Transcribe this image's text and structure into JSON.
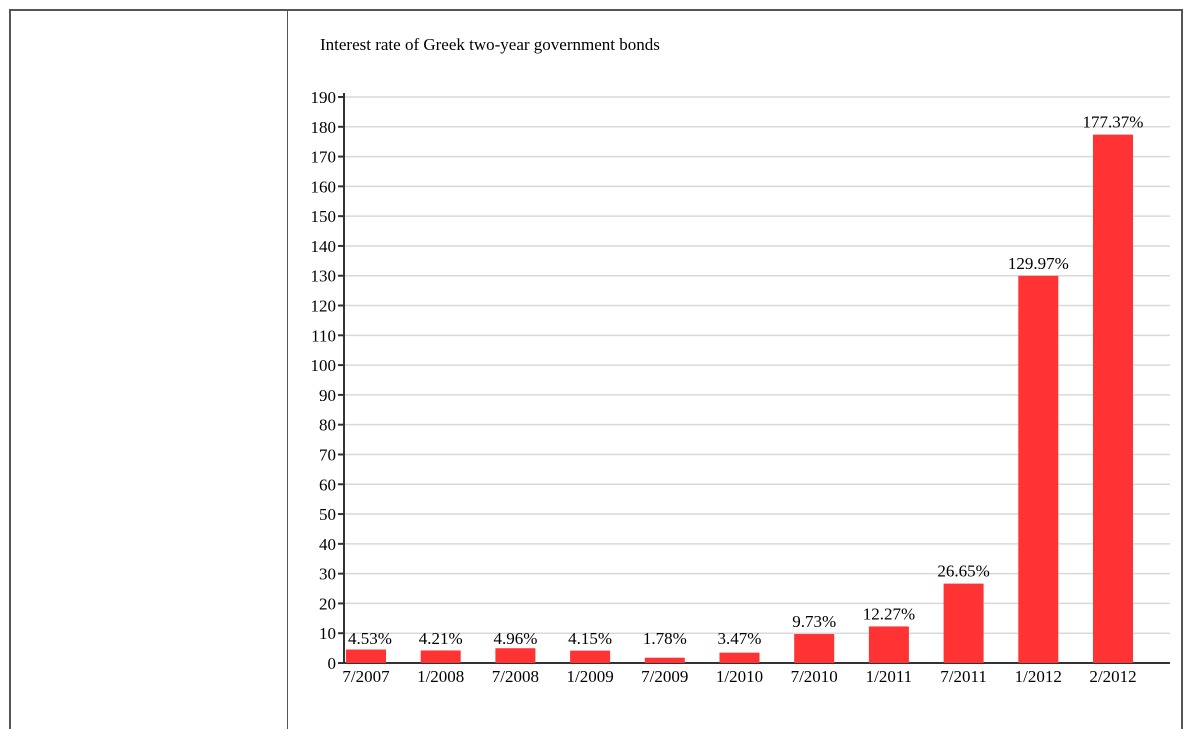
{
  "chart_data": {
    "type": "bar",
    "title": "Interest rate of Greek two-year government bonds",
    "categories": [
      "7/2007",
      "1/2008",
      "7/2008",
      "1/2009",
      "7/2009",
      "1/2010",
      "7/2010",
      "1/2011",
      "7/2011",
      "1/2012",
      "2/2012"
    ],
    "values": [
      4.53,
      4.21,
      4.96,
      4.15,
      1.78,
      3.47,
      9.73,
      12.27,
      26.65,
      129.97,
      177.37
    ],
    "data_labels": [
      "4.53%",
      "4.21%",
      "4.96%",
      "4.15%",
      "1.78%",
      "3.47%",
      "9.73%",
      "12.27%",
      "26.65%",
      "129.97%",
      "177.37%"
    ],
    "ylim": [
      0,
      190
    ],
    "yticks": [
      0,
      10,
      20,
      30,
      40,
      50,
      60,
      70,
      80,
      90,
      100,
      110,
      120,
      130,
      140,
      150,
      160,
      170,
      180,
      190
    ],
    "grid": true,
    "xlabel": "",
    "ylabel": "",
    "bar_color": "#ff3333",
    "grid_color": "#d9d9d9"
  }
}
